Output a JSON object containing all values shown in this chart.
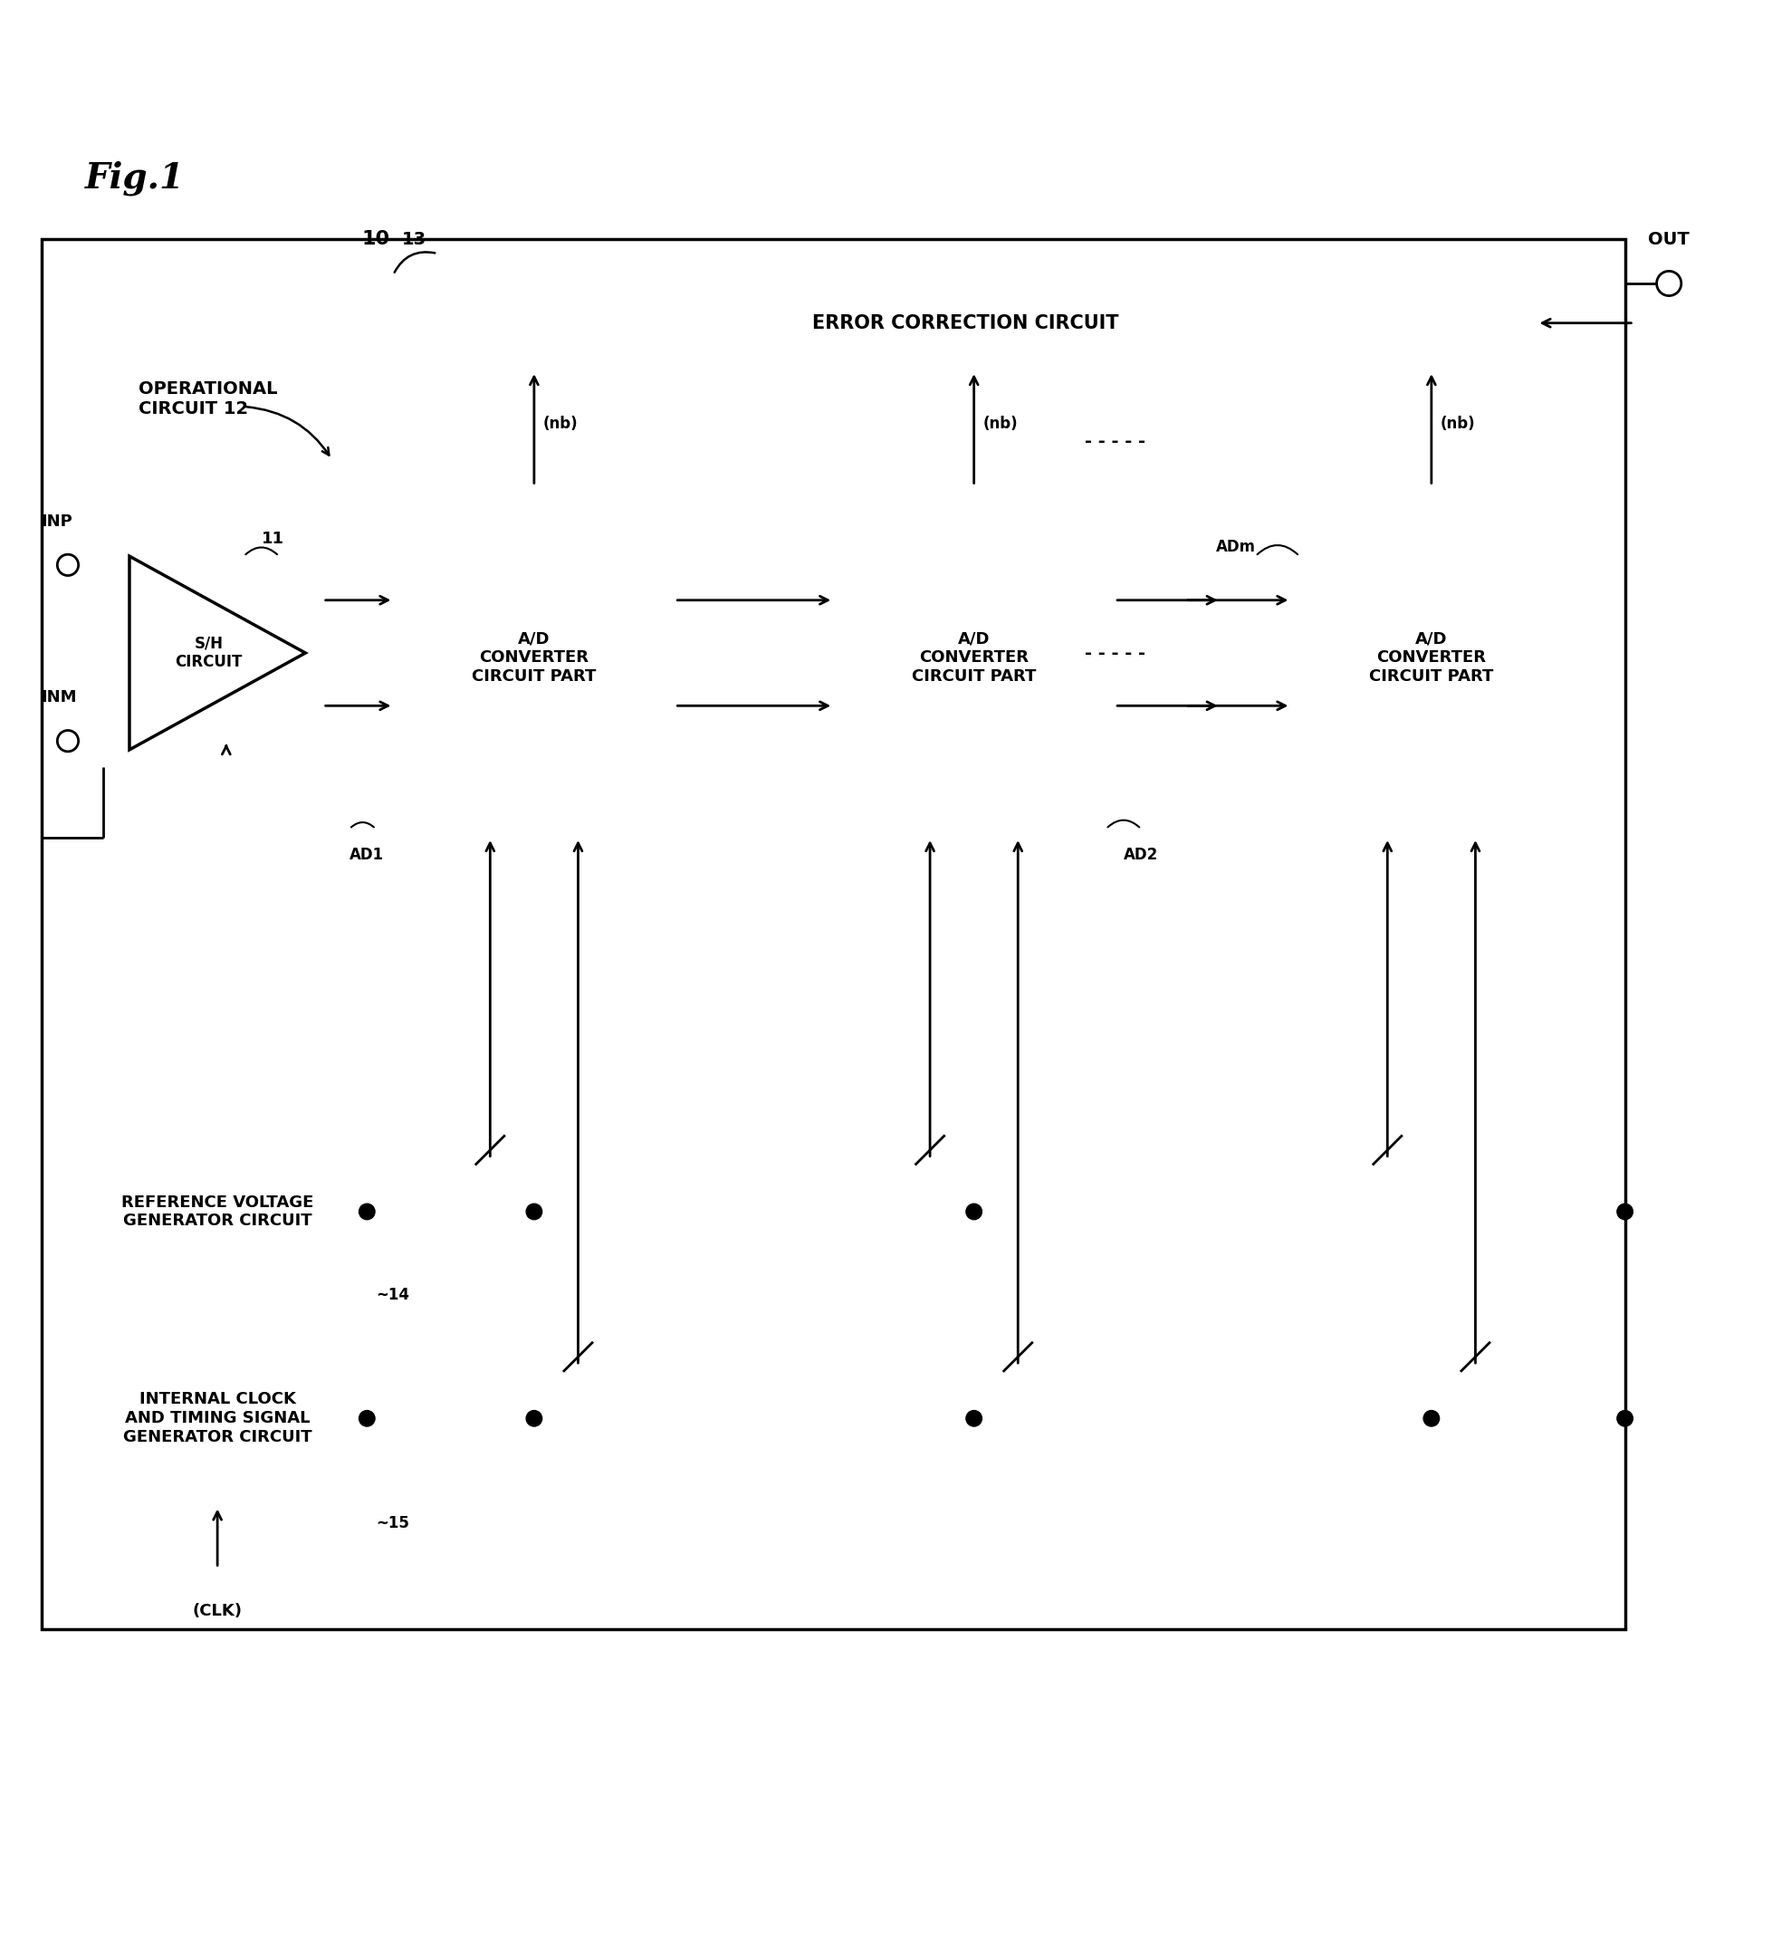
{
  "fig_label": "Fig.1",
  "bg_color": "#ffffff",
  "line_color": "#000000",
  "label_10": "10",
  "label_out": "OUT",
  "label_inp": "INP",
  "label_inm": "INM",
  "label_clk": "(CLK)",
  "label_nb": "(nb)",
  "label_13": "13",
  "label_11": "11",
  "label_ad1": "AD1",
  "label_ad2": "AD2",
  "label_adm": "ADm",
  "label_14": "~14",
  "label_15": "~15",
  "label_op_circuit": "OPERATIONAL\nCIRCUIT 12",
  "label_sh": "S/H\nCIRCUIT",
  "label_err": "ERROR CORRECTION CIRCUIT",
  "label_adc1": "A/D\nCONVERTER\nCIRCUIT PART",
  "label_adc2": "A/D\nCONVERTER\nCIRCUIT PART",
  "label_adcm": "A/D\nCONVERTER\nCIRCUIT PART",
  "label_refvolt": "REFERENCE VOLTAGE\nGENERATOR CIRCUIT",
  "label_intclk": "INTERNAL CLOCK\nAND TIMING SIGNAL\nGENERATOR CIRCUIT"
}
